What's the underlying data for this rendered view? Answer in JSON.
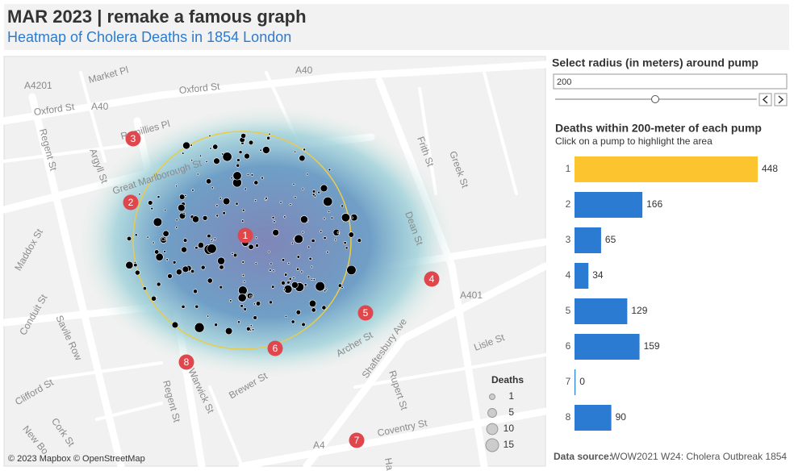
{
  "header": {
    "title": "MAR 2023 | remake a famous graph",
    "subtitle": "Heatmap of Cholera Deaths in 1854 London"
  },
  "map": {
    "streets": [
      "Market Pl",
      "A4201",
      "A40",
      "Oxford St",
      "A40",
      "Oxford St",
      "Regent St",
      "Ramillies Pl",
      "Argyll St",
      "Great Marlborough St",
      "Maddox St",
      "Conduit St",
      "Savile Row",
      "Clifford St",
      "Cork St",
      "New Bo",
      "Regent St",
      "Warwick St",
      "Brewer St",
      "Frith St",
      "Greek St",
      "Dean St",
      "A401",
      "Shaftesbury Ave",
      "Archer St",
      "Lisle St",
      "Rupert St",
      "Coventry St",
      "A4",
      "Ha"
    ],
    "pumps": [
      "1",
      "2",
      "3",
      "4",
      "5",
      "6",
      "7",
      "8"
    ],
    "legend": {
      "title": "Deaths",
      "sizes": [
        1,
        5,
        10,
        15
      ]
    },
    "attribution": "© 2023 Mapbox © OpenStreetMap"
  },
  "control": {
    "label": "Select radius (in meters) around pump",
    "input": "200"
  },
  "chart_data": {
    "type": "bar",
    "title": "Deaths within 200-meter of each pump",
    "subtitle": "Click on a pump to highlight the area",
    "categories": [
      "1",
      "2",
      "3",
      "4",
      "5",
      "6",
      "7",
      "8"
    ],
    "values": [
      448,
      166,
      65,
      34,
      129,
      159,
      0,
      90
    ],
    "colors": [
      "#fcc52f",
      "#2b7bd2",
      "#2b7bd2",
      "#2b7bd2",
      "#2b7bd2",
      "#2b7bd2",
      "#2b7bd2",
      "#2b7bd2"
    ]
  },
  "footer": {
    "label": "Data source:",
    "text": "WOW2021 W24: Cholera Outbreak 1854"
  }
}
